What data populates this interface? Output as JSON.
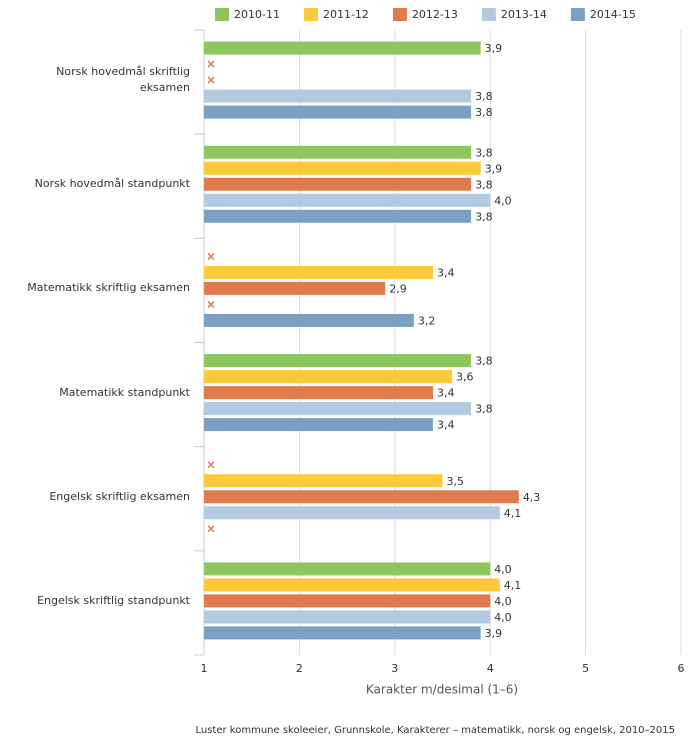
{
  "chart_data": {
    "type": "bar",
    "orientation": "horizontal",
    "categories": [
      "Norsk hovedmål skriftlig eksamen",
      "Norsk hovedmål standpunkt",
      "Matematikk skriftlig eksamen",
      "Matematikk standpunkt",
      "Engelsk skriftlig eksamen",
      "Engelsk skriftlig standpunkt"
    ],
    "series": [
      {
        "name": "2010-11",
        "color": "#8cc65d",
        "values": [
          3.9,
          3.8,
          null,
          3.8,
          null,
          4.0
        ],
        "value_labels": [
          "3,9",
          "3,8",
          null,
          "3,8",
          null,
          "4,0"
        ]
      },
      {
        "name": "2011-12",
        "color": "#fcc93a",
        "values": [
          null,
          3.9,
          3.4,
          3.6,
          3.5,
          4.1
        ],
        "value_labels": [
          null,
          "3,9",
          "3,4",
          "3,6",
          "3,5",
          "4,1"
        ]
      },
      {
        "name": "2012-13",
        "color": "#e07b4f",
        "values": [
          null,
          3.8,
          2.9,
          3.4,
          4.3,
          4.0
        ],
        "value_labels": [
          null,
          "3,8",
          "2,9",
          "3,4",
          "4,3",
          "4,0"
        ]
      },
      {
        "name": "2013-14",
        "color": "#b3c9dd",
        "values": [
          3.8,
          4.0,
          null,
          3.8,
          4.1,
          4.0
        ],
        "value_labels": [
          "3,8",
          "4,0",
          null,
          "3,8",
          "4,1",
          "4,0"
        ]
      },
      {
        "name": "2014-15",
        "color": "#7aa0c4",
        "values": [
          3.8,
          3.8,
          3.2,
          3.4,
          null,
          3.9
        ],
        "value_labels": [
          "3,8",
          "3,8",
          "3,2",
          "3,4",
          null,
          "3,9"
        ]
      }
    ],
    "xlim": [
      1,
      6
    ],
    "xticks": [
      1,
      2,
      3,
      4,
      5,
      6
    ],
    "grid": true,
    "x_label": "Karakter m/desimal (1–6)",
    "source": "Luster kommune skoleeier, Grunnskole, Karakterer – matematikk, norsk og engelsk, 2010–2015",
    "legend": "top"
  }
}
